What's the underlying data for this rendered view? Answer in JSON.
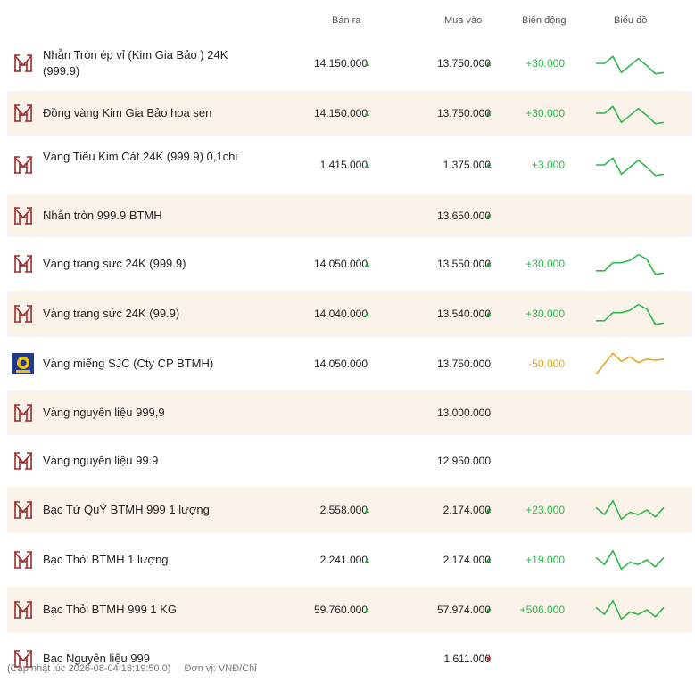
{
  "header": {
    "sell": "Bán ra",
    "buy": "Mua vào",
    "change": "Biến động",
    "chart": "Biểu đồ"
  },
  "colors": {
    "up": "#2e9e3a",
    "down": "#d9262c",
    "positive": "#2eb84b",
    "negative": "#e3a824",
    "brand": "#9e2a2b",
    "alt_row": "#fbf3ea"
  },
  "rows": [
    {
      "name": "Nhẫn Tròn ép vỉ (Kim Gia Bảo ) 24K (999.9)",
      "sell": "14.150.000",
      "sell_dir": "up",
      "buy": "13.750.000",
      "buy_dir": "up",
      "change": "+30.000",
      "trend": "pos",
      "logo": "btmh-logo-icon",
      "spark": [
        0.5,
        0.5,
        0.2,
        0.9,
        0.6,
        0.3,
        0.6,
        0.95,
        0.9
      ]
    },
    {
      "name": "Đồng vàng Kim Gia Bảo hoa sen",
      "sell": "14.150.000",
      "sell_dir": "up",
      "buy": "13.750.000",
      "buy_dir": "up",
      "change": "+30.000",
      "trend": "pos",
      "logo": "btmh-logo-icon",
      "spark": [
        0.5,
        0.5,
        0.2,
        0.9,
        0.6,
        0.3,
        0.6,
        0.95,
        0.9
      ]
    },
    {
      "name": "Vàng Tiểu Kim Cát 24K (999.9) 0,1chi",
      "sell": "1.415.000",
      "sell_dir": "up",
      "buy": "1.375.000",
      "buy_dir": "up",
      "change": "+3.000",
      "trend": "pos",
      "logo": "btmh-logo-icon",
      "spark": [
        0.5,
        0.5,
        0.2,
        0.9,
        0.6,
        0.3,
        0.6,
        0.95,
        0.9
      ]
    },
    {
      "name": "Nhẫn tròn 999.9 BTMH",
      "sell": "",
      "sell_dir": "",
      "buy": "13.650.000",
      "buy_dir": "up",
      "change": "",
      "trend": "",
      "logo": "btmh-logo-icon",
      "spark": []
    },
    {
      "name": "Vàng trang sức 24K (999.9)",
      "sell": "14.050.000",
      "sell_dir": "up",
      "buy": "13.550.000",
      "buy_dir": "up",
      "change": "+30.000",
      "trend": "pos",
      "logo": "btmh-logo-icon",
      "spark": [
        0.8,
        0.8,
        0.45,
        0.45,
        0.35,
        0.1,
        0.3,
        0.95,
        0.9
      ]
    },
    {
      "name": "Vàng trang sức 24K (99.9)",
      "sell": "14.040.000",
      "sell_dir": "up",
      "buy": "13.540.000",
      "buy_dir": "up",
      "change": "+30.000",
      "trend": "pos",
      "logo": "btmh-logo-icon",
      "spark": [
        0.8,
        0.8,
        0.45,
        0.45,
        0.35,
        0.1,
        0.3,
        0.95,
        0.9
      ]
    },
    {
      "name": "Vàng miếng SJC (Cty CP BTMH)",
      "sell": "14.050.000",
      "sell_dir": "",
      "buy": "13.750.000",
      "buy_dir": "",
      "change": "-50.000",
      "trend": "neg",
      "logo": "sjc-logo-icon",
      "spark": [
        0.95,
        0.5,
        0.05,
        0.4,
        0.2,
        0.45,
        0.3,
        0.35,
        0.3
      ]
    },
    {
      "name": "Vàng nguyên liệu 999,9",
      "sell": "",
      "sell_dir": "",
      "buy": "13.000.000",
      "buy_dir": "",
      "change": "",
      "trend": "",
      "logo": "btmh-logo-icon",
      "spark": []
    },
    {
      "name": "Vàng nguyên liệu 99.9",
      "sell": "",
      "sell_dir": "",
      "buy": "12.950.000",
      "buy_dir": "",
      "change": "",
      "trend": "",
      "logo": "btmh-logo-icon",
      "spark": []
    },
    {
      "name": "Bạc Tứ QuÝ BTMH 999 1 lượng",
      "sell": "2.558.000",
      "sell_dir": "up",
      "buy": "2.174.000",
      "buy_dir": "up",
      "change": "+23.000",
      "trend": "pos",
      "logo": "btmh-logo-icon",
      "spark": [
        0.4,
        0.7,
        0.1,
        0.9,
        0.6,
        0.7,
        0.5,
        0.8,
        0.4
      ]
    },
    {
      "name": "Bạc Thỏi BTMH 1 lượng",
      "sell": "2.241.000",
      "sell_dir": "up",
      "buy": "2.174.000",
      "buy_dir": "up",
      "change": "+19.000",
      "trend": "pos",
      "logo": "btmh-logo-icon",
      "spark": [
        0.4,
        0.7,
        0.1,
        0.9,
        0.6,
        0.7,
        0.5,
        0.8,
        0.4
      ]
    },
    {
      "name": "Bạc Thỏi BTMH 999 1 KG",
      "sell": "59.760.000",
      "sell_dir": "up",
      "buy": "57.974.000",
      "buy_dir": "up",
      "change": "+506.000",
      "trend": "pos",
      "logo": "btmh-logo-icon",
      "spark": [
        0.4,
        0.7,
        0.1,
        0.9,
        0.6,
        0.7,
        0.5,
        0.8,
        0.4
      ]
    },
    {
      "name": "Bạc Nguyên liệu 999",
      "sell": "",
      "sell_dir": "",
      "buy": "1.611.000",
      "buy_dir": "down",
      "change": "",
      "trend": "",
      "logo": "btmh-logo-icon",
      "spark": []
    }
  ],
  "footer": {
    "updated": "(Cập nhật lúc 2026-08-04 18:19:50.0)",
    "unit": "Đơn vị: VNĐ/Chỉ"
  }
}
